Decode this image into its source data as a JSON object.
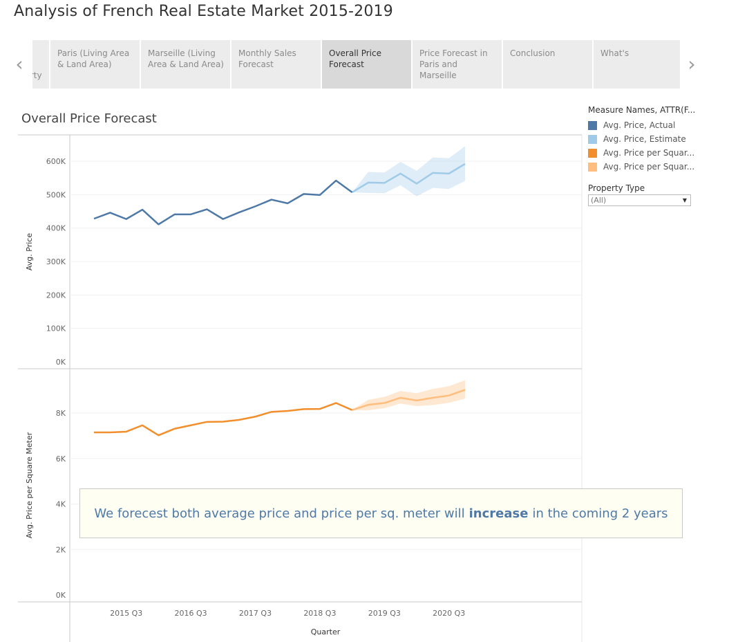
{
  "page": {
    "title": "Analysis of French Real Estate Market 2015-2019"
  },
  "story": {
    "tabs": [
      {
        "label": "Difference between Sales Type and Property",
        "active": false
      },
      {
        "label": "Paris (Living Area & Land Area)",
        "active": false
      },
      {
        "label": "Marseille (Living Area & Land Area)",
        "active": false
      },
      {
        "label": "Monthly Sales Forecast",
        "active": false
      },
      {
        "label": "Overall Price Forecast",
        "active": true
      },
      {
        "label": "Price Forecast in Paris and Marseille",
        "active": false
      },
      {
        "label": "Conclusion",
        "active": false
      },
      {
        "label": "What's",
        "active": false
      }
    ],
    "prev_icon": "chevron-left-icon",
    "next_icon": "chevron-right-icon"
  },
  "legend": {
    "title": "Measure Names, ATTR(F...",
    "items": [
      {
        "label": "Avg. Price, Actual",
        "color": "#4e79a7"
      },
      {
        "label": "Avg. Price, Estimate",
        "color": "#a0cbe8"
      },
      {
        "label": "Avg. Price per Squar...",
        "color": "#f28e2b"
      },
      {
        "label": "Avg. Price per Squar...",
        "color": "#ffbe7d"
      }
    ]
  },
  "filter": {
    "title": "Property Type",
    "value": "(All)"
  },
  "annotation": {
    "before": "We forecest both average price and price per sq. meter will",
    "bold": "increase",
    "after": "in the coming 2 years"
  },
  "chart_data": {
    "type": "line",
    "title": "Overall Price Forecast",
    "xlabel": "Quarter",
    "x": [
      "2015 Q1",
      "2015 Q2",
      "2015 Q3",
      "2015 Q4",
      "2016 Q1",
      "2016 Q2",
      "2016 Q3",
      "2016 Q4",
      "2017 Q1",
      "2017 Q2",
      "2017 Q3",
      "2017 Q4",
      "2018 Q1",
      "2018 Q2",
      "2018 Q3",
      "2018 Q4",
      "2019 Q1",
      "2019 Q2",
      "2019 Q3",
      "2019 Q4",
      "2020 Q1",
      "2020 Q2",
      "2020 Q3",
      "2020 Q4"
    ],
    "x_tick_labels": [
      "2015 Q3",
      "2016 Q3",
      "2017 Q3",
      "2018 Q3",
      "2019 Q3",
      "2020 Q3"
    ],
    "panels": [
      {
        "ylabel": "Avg. Price",
        "ylim": [
          0,
          660000
        ],
        "yticks": [
          0,
          100000,
          200000,
          300000,
          400000,
          500000,
          600000
        ],
        "ytick_labels": [
          "0K",
          "100K",
          "200K",
          "300K",
          "400K",
          "500K",
          "600K"
        ],
        "actual": {
          "name": "Avg. Price, Actual",
          "color": "#4e79a7",
          "values": [
            428000,
            446000,
            427000,
            455000,
            411000,
            441000,
            441000,
            456000,
            427000,
            447000,
            465000,
            485000,
            474000,
            502000,
            499000,
            542000,
            507000
          ]
        },
        "estimate": {
          "name": "Avg. Price, Estimate",
          "color": "#a0cbe8",
          "start_index": 16,
          "values": [
            507000,
            536000,
            535000,
            563000,
            533000,
            565000,
            563000,
            592000
          ],
          "lower": [
            507000,
            505000,
            504000,
            528000,
            495000,
            520000,
            517000,
            541000
          ],
          "upper": [
            507000,
            568000,
            566000,
            598000,
            571000,
            611000,
            609000,
            645000
          ]
        }
      },
      {
        "ylabel": "Avg. Price per Square Meter",
        "ylim": [
          0,
          9800
        ],
        "yticks": [
          0,
          2000,
          4000,
          6000,
          8000
        ],
        "ytick_labels": [
          "0K",
          "2K",
          "4K",
          "6K",
          "8K"
        ],
        "actual": {
          "name": "Avg. Price per Square Meter, Actual",
          "color": "#f28e2b",
          "values": [
            7150,
            7150,
            7180,
            7460,
            7020,
            7310,
            7460,
            7610,
            7620,
            7700,
            7840,
            8050,
            8090,
            8170,
            8180,
            8440,
            8130
          ]
        },
        "estimate": {
          "name": "Avg. Price per Square Meter, Estimate",
          "color": "#ffbe7d",
          "start_index": 16,
          "values": [
            8130,
            8360,
            8440,
            8670,
            8550,
            8670,
            8770,
            9020
          ],
          "lower": [
            8130,
            8120,
            8210,
            8420,
            8300,
            8350,
            8450,
            8630
          ],
          "upper": [
            8130,
            8580,
            8710,
            8970,
            8870,
            9060,
            9180,
            9440
          ]
        }
      }
    ]
  }
}
